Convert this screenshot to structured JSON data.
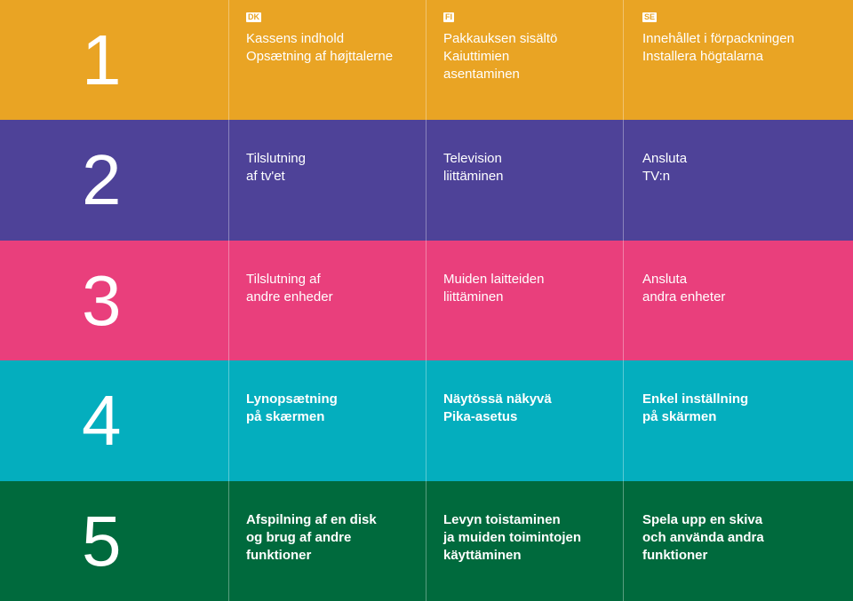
{
  "colors": {
    "row1": "#e9a424",
    "row2": "#4e4298",
    "row3": "#e93f7c",
    "row4": "#04aebe",
    "row5": "#006a3d"
  },
  "languages": [
    "DK",
    "FI",
    "SE"
  ],
  "rows": [
    {
      "number": "1",
      "items": [
        "Kassens indhold\nOpsætning af højttalerne",
        "Pakkauksen sisältö\nKaiuttimien\nasentaminen",
        "Innehållet i förpackningen\nInstallera högtalarna"
      ]
    },
    {
      "number": "2",
      "items": [
        "Tilslutning\naf tv'et",
        "Television\nliittäminen",
        "Ansluta\nTV:n"
      ]
    },
    {
      "number": "3",
      "items": [
        "Tilslutning af\nandre enheder",
        "Muiden laitteiden\nliittäminen",
        "Ansluta\nandra enheter"
      ]
    },
    {
      "number": "4",
      "items": [
        "Lynopsætning\npå skærmen",
        "Näytössä näkyvä\nPika-asetus",
        "Enkel inställning\npå skärmen"
      ]
    },
    {
      "number": "5",
      "items": [
        "Afspilning af en disk\nog brug af andre\nfunktioner",
        "Levyn toistaminen\nja muiden toimintojen\nkäyttäminen",
        "Spela upp en skiva\noch använda andra\nfunktioner"
      ]
    }
  ]
}
